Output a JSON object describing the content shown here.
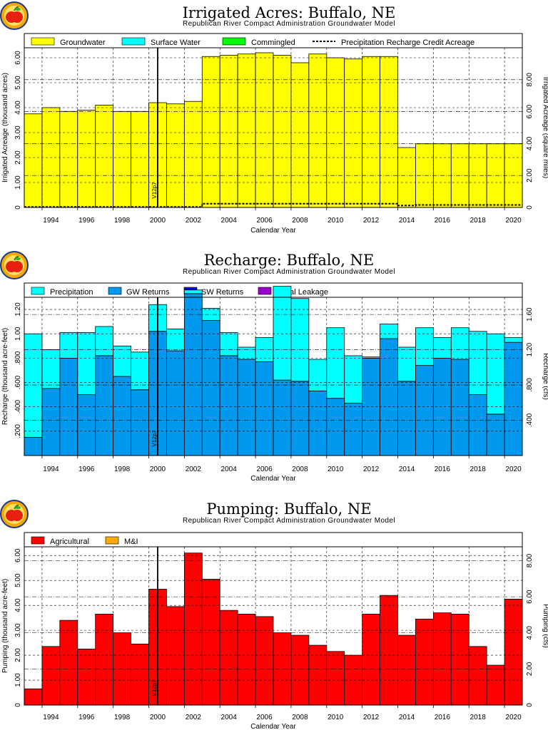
{
  "colors": {
    "groundwater": "#ffff00",
    "surface_water": "#00ffff",
    "commingled": "#00ff00",
    "precipitation": "#00ffff",
    "gw_returns": "#0099ee",
    "sw_returns": "#0000ff",
    "canal_leakage": "#9900cc",
    "agricultural": "#ff0000",
    "mi": "#ffaa00",
    "logo_outer": "#f5a800",
    "logo_apple": "#e82010"
  },
  "chart_data": [
    {
      "type": "bar",
      "title": "Irrigated Acres: Buffalo, NE",
      "subtitle": "Republican River Compact Administration Groundwater Model",
      "xlabel": "Calendar Year",
      "ylabel": "Irrigated Acreage (thousand acres)",
      "ylabel_right": "Irrigated Acreage (square miles)",
      "marker_label": "V12p7",
      "marker_year": 2000.5,
      "xlim": [
        1993,
        2021
      ],
      "ylim": [
        0,
        6.4
      ],
      "yticks": [
        0,
        1,
        2,
        3,
        4,
        5,
        6
      ],
      "yticklabels": [
        "0",
        "1.00",
        "2.00",
        "3.00",
        "4.00",
        "5.00",
        "6.00"
      ],
      "ylim_right": [
        0,
        10
      ],
      "yticks_right": [
        0,
        2,
        4,
        6,
        8
      ],
      "yticklabels_right": [
        "0",
        "2.00",
        "4.00",
        "6.00",
        "8.00"
      ],
      "xticks": [
        1994,
        1996,
        1998,
        2000,
        2002,
        2004,
        2006,
        2008,
        2010,
        2012,
        2014,
        2016,
        2018,
        2020
      ],
      "legend": [
        "Groundwater",
        "Surface Water",
        "Commingled",
        "Precipitation Recharge Credit Acreage"
      ],
      "years": [
        1993,
        1994,
        1995,
        1996,
        1997,
        1998,
        1999,
        2000,
        2001,
        2002,
        2003,
        2004,
        2005,
        2006,
        2007,
        2008,
        2009,
        2010,
        2011,
        2012,
        2013,
        2014,
        2015,
        2016,
        2017,
        2018,
        2019,
        2020
      ],
      "series": [
        {
          "name": "Groundwater",
          "values": [
            3.75,
            4.0,
            3.85,
            3.9,
            4.1,
            3.85,
            3.85,
            4.2,
            4.15,
            4.25,
            6.05,
            6.1,
            6.15,
            6.2,
            6.1,
            5.8,
            6.15,
            6.0,
            5.95,
            6.05,
            6.05,
            2.4,
            2.55,
            2.55,
            2.55,
            2.55,
            2.55,
            2.55
          ]
        },
        {
          "name": "Surface Water",
          "values": [
            0,
            0,
            0,
            0,
            0,
            0,
            0,
            0,
            0,
            0,
            0,
            0,
            0,
            0,
            0,
            0,
            0,
            0,
            0,
            0,
            0,
            0,
            0,
            0,
            0,
            0,
            0,
            0
          ]
        },
        {
          "name": "Commingled",
          "values": [
            0,
            0,
            0,
            0,
            0,
            0,
            0,
            0,
            0,
            0,
            0,
            0,
            0,
            0,
            0,
            0,
            0,
            0,
            0,
            0,
            0,
            0,
            0,
            0,
            0,
            0,
            0,
            0
          ]
        },
        {
          "name": "Precipitation Recharge Credit Acreage",
          "values": [
            0.02,
            0.02,
            0.02,
            0.02,
            0.02,
            0.02,
            0.02,
            0.02,
            0.02,
            0.02,
            0.15,
            0.15,
            0.15,
            0.15,
            0.15,
            0.15,
            0.15,
            0.15,
            0.15,
            0.15,
            0.15,
            0.08,
            0.1,
            0.1,
            0.1,
            0.1,
            0.1,
            0.1
          ]
        }
      ]
    },
    {
      "type": "bar",
      "title": "Recharge: Buffalo, NE",
      "subtitle": "Republican River Compact Administration Groundwater Model",
      "xlabel": "Calendar Year",
      "ylabel": "Recharge (thousand acre-feet)",
      "ylabel_right": "Recharge (cfs)",
      "marker_label": "V12p7",
      "marker_year": 2000.5,
      "xlim": [
        1993,
        2021
      ],
      "ylim": [
        0,
        1.3
      ],
      "yticks": [
        0.2,
        0.4,
        0.6,
        0.8,
        1.0,
        1.2
      ],
      "yticklabels": [
        ".200",
        ".400",
        ".600",
        ".800",
        "1.00",
        "1.20"
      ],
      "ylim_right": [
        0,
        1.795
      ],
      "yticks_right": [
        0.4,
        0.8,
        1.2,
        1.6
      ],
      "yticklabels_right": [
        ".400",
        ".800",
        "1.20",
        "1.60"
      ],
      "xticks": [
        1994,
        1996,
        1998,
        2000,
        2002,
        2004,
        2006,
        2008,
        2010,
        2012,
        2014,
        2016,
        2018,
        2020
      ],
      "legend": [
        "Precipitation",
        "GW Returns",
        "SW Returns",
        "Canal Leakage"
      ],
      "years": [
        1993,
        1994,
        1995,
        1996,
        1997,
        1998,
        1999,
        2000,
        2001,
        2002,
        2003,
        2004,
        2005,
        2006,
        2007,
        2008,
        2009,
        2010,
        2011,
        2012,
        2013,
        2014,
        2015,
        2016,
        2017,
        2018,
        2019,
        2020
      ],
      "series": [
        {
          "name": "GW Returns",
          "values": [
            0.15,
            0.55,
            0.8,
            0.5,
            0.82,
            0.65,
            0.54,
            1.02,
            0.86,
            1.33,
            1.11,
            0.82,
            0.79,
            0.77,
            0.62,
            0.61,
            0.53,
            0.47,
            0.43,
            0.8,
            0.96,
            0.61,
            0.74,
            0.8,
            0.79,
            0.5,
            0.34,
            0.93
          ]
        },
        {
          "name": "Precipitation",
          "values": [
            0.85,
            0.32,
            0.21,
            0.51,
            0.24,
            0.25,
            0.31,
            0.22,
            0.18,
            0.03,
            0.1,
            0.19,
            0.1,
            0.2,
            0.77,
            0.68,
            0.26,
            0.58,
            0.39,
            0.01,
            0.12,
            0.28,
            0.31,
            0.17,
            0.26,
            0.52,
            0.66,
            0.04
          ]
        },
        {
          "name": "SW Returns",
          "values": [
            0,
            0,
            0,
            0,
            0,
            0,
            0,
            0,
            0,
            0,
            0,
            0,
            0,
            0,
            0,
            0,
            0,
            0,
            0,
            0,
            0,
            0,
            0,
            0,
            0,
            0,
            0,
            0
          ]
        },
        {
          "name": "Canal Leakage",
          "values": [
            0,
            0,
            0,
            0,
            0,
            0,
            0,
            0,
            0,
            0,
            0,
            0,
            0,
            0,
            0,
            0,
            0,
            0,
            0,
            0,
            0,
            0,
            0,
            0,
            0,
            0,
            0,
            0
          ]
        }
      ]
    },
    {
      "type": "bar",
      "title": "Pumping: Buffalo, NE",
      "subtitle": "Republican River Compact Administration Groundwater Model",
      "xlabel": "Calendar Year",
      "ylabel": "Pumping (thousand acre-feet)",
      "ylabel_right": "Pumping (cfs)",
      "marker_label": "V12p7",
      "marker_year": 2000.5,
      "xlim": [
        1993,
        2021
      ],
      "ylim": [
        0,
        6.35
      ],
      "yticks": [
        0,
        1,
        2,
        3,
        4,
        5,
        6
      ],
      "yticklabels": [
        "0",
        "1.00",
        "2.00",
        "3.00",
        "4.00",
        "5.00",
        "6.00"
      ],
      "ylim_right": [
        0,
        8.77
      ],
      "yticks_right": [
        0,
        2,
        4,
        6,
        8
      ],
      "yticklabels_right": [
        "0",
        "2.00",
        "4.00",
        "6.00",
        "8.00"
      ],
      "xticks": [
        1994,
        1996,
        1998,
        2000,
        2002,
        2004,
        2006,
        2008,
        2010,
        2012,
        2014,
        2016,
        2018,
        2020
      ],
      "legend": [
        "Agricultural",
        "M&I"
      ],
      "years": [
        1993,
        1994,
        1995,
        1996,
        1997,
        1998,
        1999,
        2000,
        2001,
        2002,
        2003,
        2004,
        2005,
        2006,
        2007,
        2008,
        2009,
        2010,
        2011,
        2012,
        2013,
        2014,
        2015,
        2016,
        2017,
        2018,
        2019,
        2020
      ],
      "series": [
        {
          "name": "Agricultural",
          "values": [
            0.65,
            2.35,
            3.4,
            2.25,
            3.65,
            2.9,
            2.45,
            4.65,
            3.95,
            6.1,
            5.05,
            3.8,
            3.65,
            3.55,
            2.9,
            2.8,
            2.4,
            2.15,
            2.0,
            3.65,
            4.4,
            2.8,
            3.45,
            3.7,
            3.65,
            2.35,
            1.6,
            4.25
          ]
        },
        {
          "name": "M&I",
          "values": [
            0,
            0,
            0,
            0,
            0,
            0,
            0,
            0,
            0,
            0,
            0,
            0,
            0,
            0,
            0,
            0,
            0,
            0,
            0,
            0,
            0,
            0,
            0,
            0,
            0,
            0,
            0,
            0
          ]
        }
      ]
    }
  ]
}
